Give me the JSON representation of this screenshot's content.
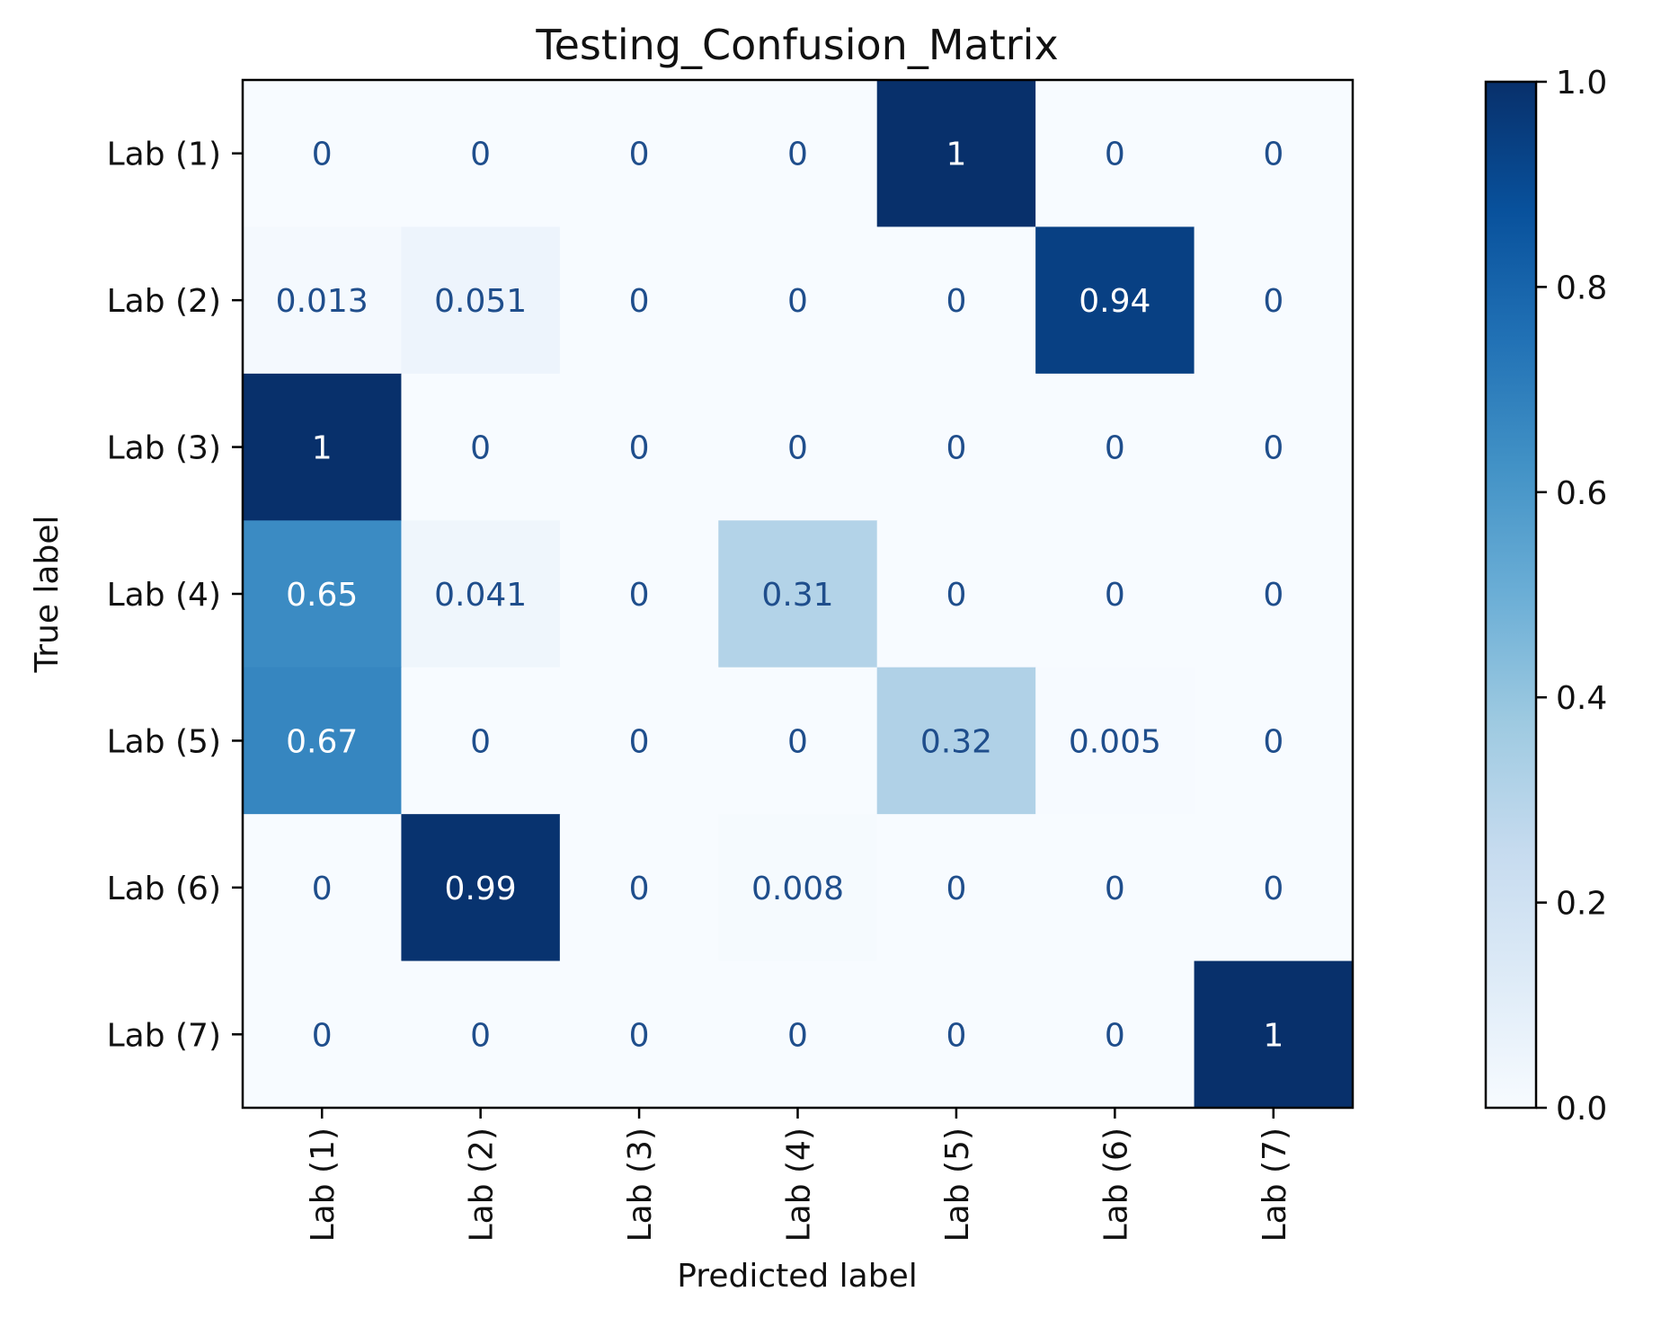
{
  "chart_data": {
    "type": "heatmap",
    "title": "Testing_Confusion_Matrix",
    "xlabel": "Predicted label",
    "ylabel": "True label",
    "x_categories": [
      "Lab (1)",
      "Lab (2)",
      "Lab (3)",
      "Lab (4)",
      "Lab (5)",
      "Lab (6)",
      "Lab (7)"
    ],
    "y_categories": [
      "Lab (1)",
      "Lab (2)",
      "Lab (3)",
      "Lab (4)",
      "Lab (5)",
      "Lab (6)",
      "Lab (7)"
    ],
    "values": [
      [
        0,
        0,
        0,
        0,
        1,
        0,
        0
      ],
      [
        0.013,
        0.051,
        0,
        0,
        0,
        0.94,
        0
      ],
      [
        1,
        0,
        0,
        0,
        0,
        0,
        0
      ],
      [
        0.65,
        0.041,
        0,
        0.31,
        0,
        0,
        0
      ],
      [
        0.67,
        0,
        0,
        0,
        0.32,
        0.005,
        0
      ],
      [
        0,
        0.99,
        0,
        0.008,
        0,
        0,
        0
      ],
      [
        0,
        0,
        0,
        0,
        0,
        0,
        1
      ]
    ],
    "value_labels": [
      [
        "0",
        "0",
        "0",
        "0",
        "1",
        "0",
        "0"
      ],
      [
        "0.013",
        "0.051",
        "0",
        "0",
        "0",
        "0.94",
        "0"
      ],
      [
        "1",
        "0",
        "0",
        "0",
        "0",
        "0",
        "0"
      ],
      [
        "0.65",
        "0.041",
        "0",
        "0.31",
        "0",
        "0",
        "0"
      ],
      [
        "0.67",
        "0",
        "0",
        "0",
        "0.32",
        "0.005",
        "0"
      ],
      [
        "0",
        "0.99",
        "0",
        "0.008",
        "0",
        "0",
        "0"
      ],
      [
        "0",
        "0",
        "0",
        "0",
        "0",
        "0",
        "1"
      ]
    ],
    "colormap": "Blues",
    "colorbar": {
      "range": [
        0.0,
        1.0
      ],
      "ticks": [
        0.0,
        0.2,
        0.4,
        0.6,
        0.8,
        1.0
      ],
      "tick_labels": [
        "0.0",
        "0.2",
        "0.4",
        "0.6",
        "0.8",
        "1.0"
      ]
    },
    "colors": {
      "dark_text": "#1f4e8c",
      "light_text": "#ffffff",
      "axis": "#000000"
    }
  }
}
